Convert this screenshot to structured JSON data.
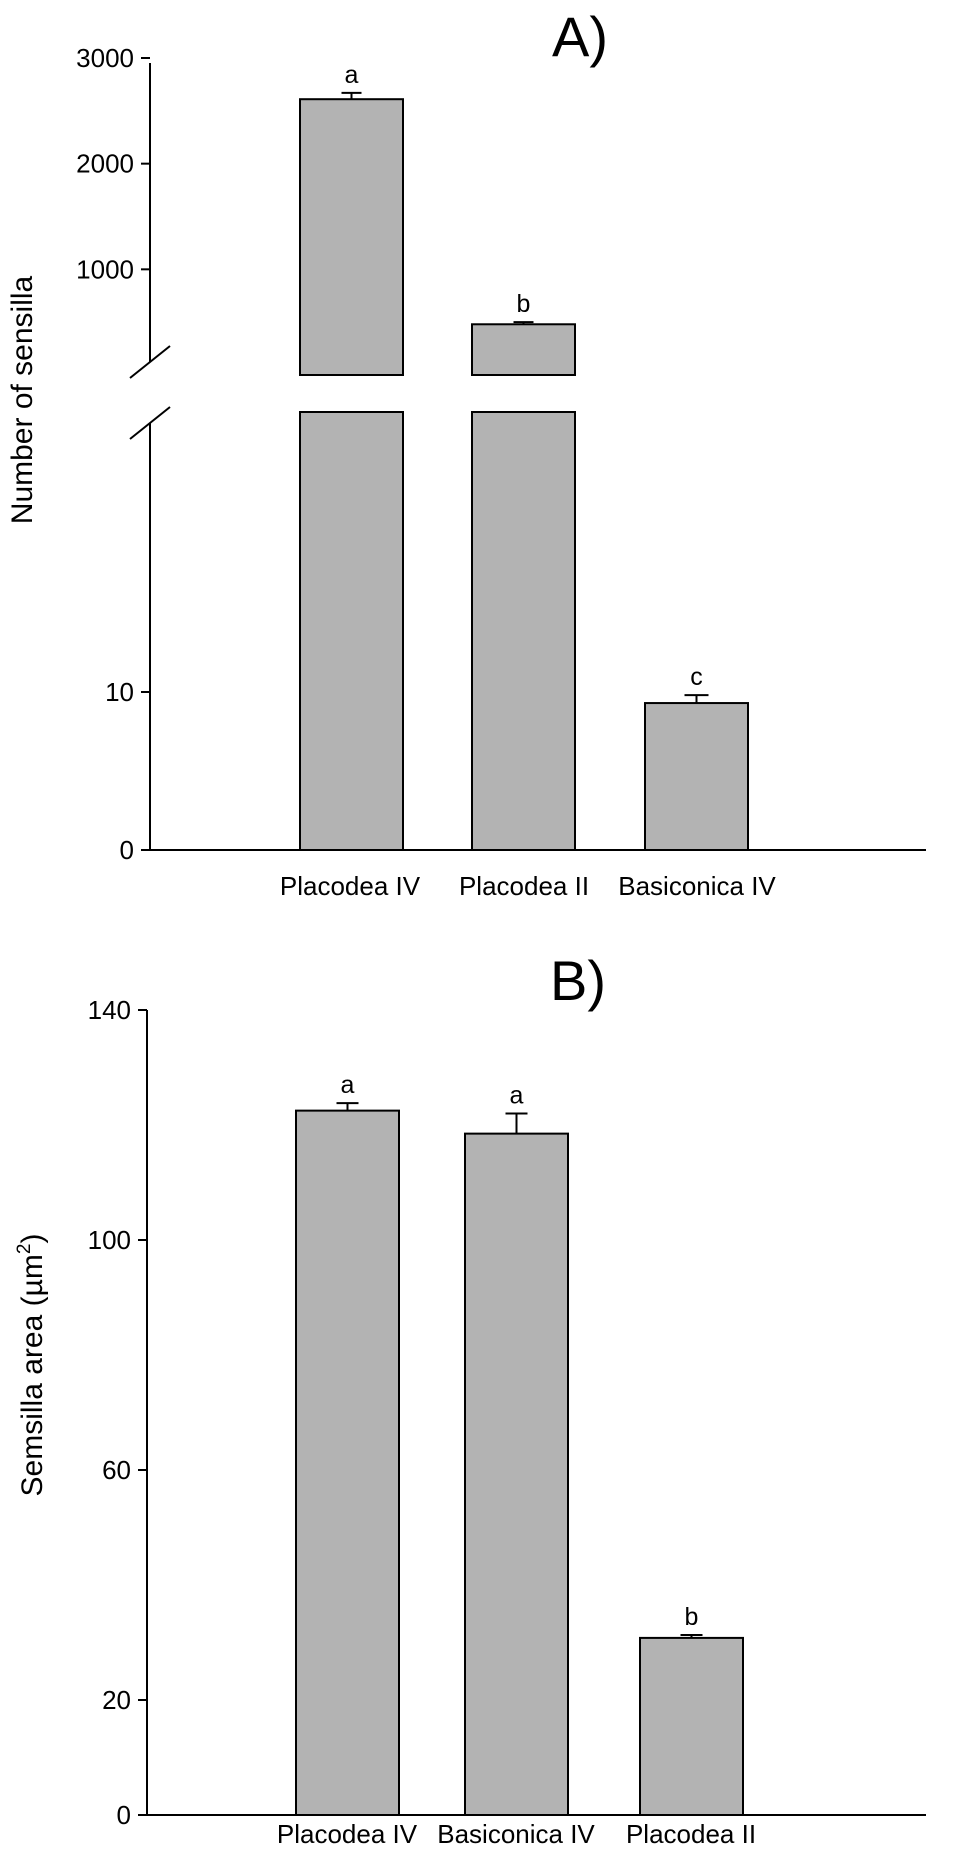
{
  "chart_data": [
    {
      "type": "bar",
      "panel_label": "A)",
      "ylabel": "Number of sensilla",
      "categories": [
        "Placodea IV",
        "Placodea II",
        "Basiconica IV"
      ],
      "values": [
        2610,
        480,
        9.3
      ],
      "error": [
        60,
        20,
        0.5
      ],
      "significance": [
        "a",
        "b",
        "c"
      ],
      "bar_color": "#b3b3b3",
      "broken_axis": true,
      "lower_segment": {
        "ylim": [
          0,
          20
        ],
        "ticks": [
          0,
          10
        ]
      },
      "upper_segment": {
        "ylim": [
          0,
          3000
        ],
        "ticks": [
          1000,
          2000,
          3000
        ]
      },
      "tick_labels": [
        "0",
        "10",
        "1000",
        "2000",
        "3000"
      ],
      "grid": false
    },
    {
      "type": "bar",
      "panel_label": "B)",
      "ylabel": "Semsilla area (µm",
      "ylabel_superscript": "2",
      "ylabel_suffix": ")",
      "categories": [
        "Placodea IV",
        "Basiconica IV",
        "Placodea II"
      ],
      "values": [
        122.5,
        118.5,
        30.8
      ],
      "error": [
        1.3,
        3.5,
        0.5
      ],
      "significance": [
        "a",
        "a",
        "b"
      ],
      "bar_color": "#b3b3b3",
      "ylim": [
        0,
        140
      ],
      "ticks": [
        0,
        20,
        60,
        100,
        140
      ],
      "tick_labels": [
        "0",
        "20",
        "60",
        "100",
        "140"
      ],
      "grid": false
    }
  ]
}
